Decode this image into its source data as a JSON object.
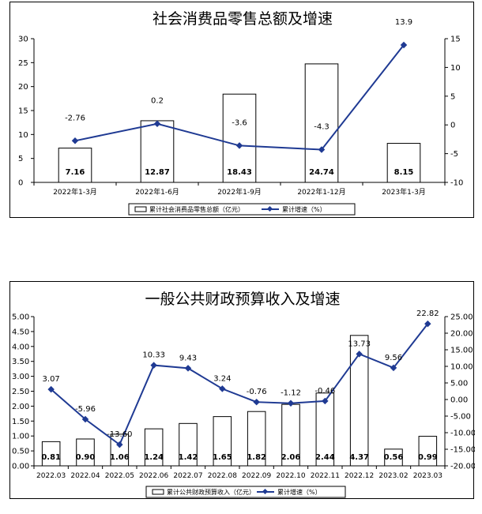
{
  "chart_data": [
    {
      "type": "bar",
      "title": "社会消费品零售总额及增速",
      "categories": [
        "2022年1-3月",
        "2022年1-6月",
        "2022年1-9月",
        "2022年1-12月",
        "2023年1-3月"
      ],
      "series": [
        {
          "name": "累计社会消费品零售总额（亿元）",
          "type": "bar",
          "axis": "left",
          "values": [
            7.16,
            12.87,
            18.43,
            24.74,
            8.15
          ],
          "labels": [
            "7.16",
            "12.87",
            "18.43",
            "24.74",
            "8.15"
          ]
        },
        {
          "name": "累计增速（%）",
          "type": "line",
          "axis": "right",
          "values": [
            -2.76,
            0.2,
            -3.6,
            -4.3,
            13.9
          ],
          "labels": [
            "-2.76",
            "0.2",
            "-3.6",
            "-4.3",
            "13.9"
          ]
        }
      ],
      "ylim_left": [
        0,
        30
      ],
      "yticks_left": [
        "0",
        "5",
        "10",
        "15",
        "20",
        "25",
        "30"
      ],
      "ylim_right": [
        -10,
        15
      ],
      "yticks_right": [
        "-10",
        "-5",
        "0",
        "5",
        "10",
        "15"
      ],
      "legend_position": "bottom",
      "grid": false,
      "colors": {
        "bar_fill": "#ffffff",
        "bar_stroke": "#000000",
        "line": "#1f3a93"
      }
    },
    {
      "type": "bar",
      "title": "一般公共财政预算收入及增速",
      "categories": [
        "2022.03",
        "2022.04",
        "2022.05",
        "2022.06",
        "2022.07",
        "2022.08",
        "2022.09",
        "2022.10",
        "2022.11",
        "2022.12",
        "2023.02",
        "2023.03"
      ],
      "series": [
        {
          "name": "累计公共财政预算收入（亿元）",
          "type": "bar",
          "axis": "left",
          "values": [
            0.81,
            0.9,
            1.06,
            1.24,
            1.42,
            1.65,
            1.82,
            2.06,
            2.44,
            4.37,
            0.56,
            0.99
          ],
          "labels": [
            "0.81",
            "0.90",
            "1.06",
            "1.24",
            "1.42",
            "1.65",
            "1.82",
            "2.06",
            "2.44",
            "4.37",
            "0.56",
            "0.99"
          ]
        },
        {
          "name": "累计增速（%）",
          "type": "line",
          "axis": "right",
          "values": [
            3.07,
            -5.96,
            -13.6,
            10.33,
            9.43,
            3.24,
            -0.76,
            -1.12,
            -0.46,
            13.73,
            9.56,
            22.82
          ],
          "labels": [
            "3.07",
            "-5.96",
            "-13.60",
            "10.33",
            "9.43",
            "3.24",
            "-0.76",
            "-1.12",
            "-0.46",
            "13.73",
            "9.56",
            "22.82"
          ]
        }
      ],
      "ylim_left": [
        0,
        5
      ],
      "yticks_left": [
        "0.00",
        "0.50",
        "1.00",
        "1.50",
        "2.00",
        "2.50",
        "3.00",
        "3.50",
        "4.00",
        "4.50",
        "5.00"
      ],
      "ylim_right": [
        -20,
        25
      ],
      "yticks_right": [
        "-20.00",
        "-15.00",
        "-10.00",
        "-5.00",
        "0.00",
        "5.00",
        "10.00",
        "15.00",
        "20.00",
        "25.00"
      ],
      "legend_position": "bottom",
      "grid": false,
      "colors": {
        "bar_fill": "#ffffff",
        "bar_stroke": "#000000",
        "line": "#1f3a93"
      }
    }
  ]
}
